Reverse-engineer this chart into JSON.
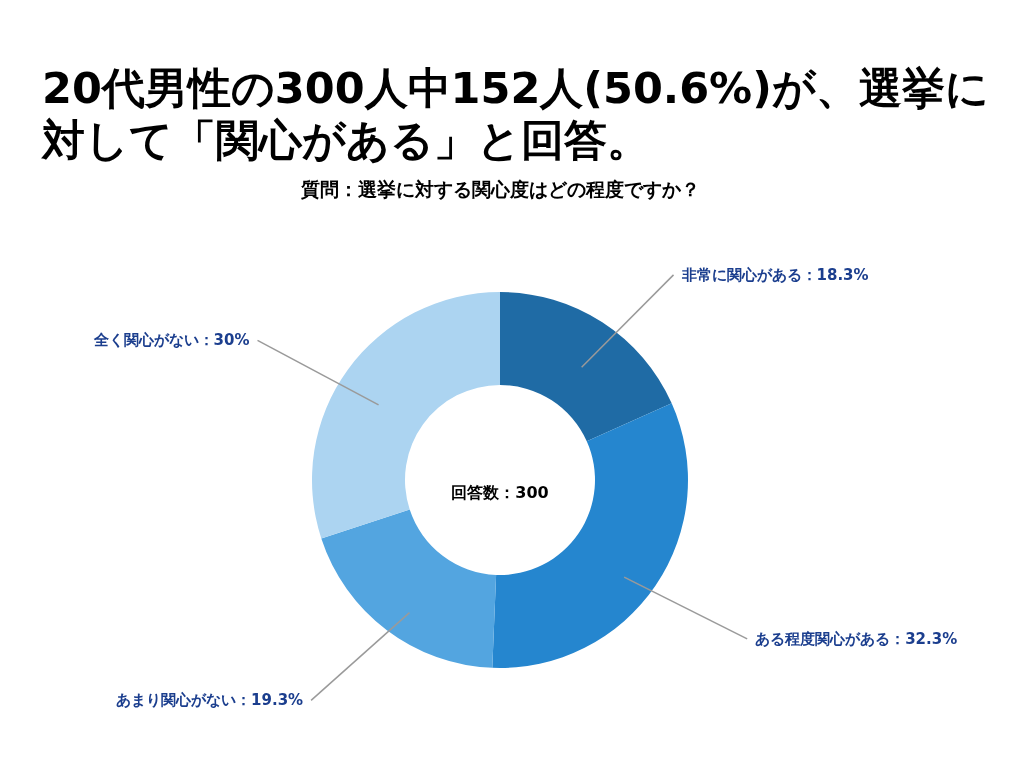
{
  "chart_data": {
    "type": "donut",
    "title": "20代男性の300人中152人(50.6%)が、選挙に対して「関心がある」と回答。",
    "subtitle": "質問：選挙に対する関心度はどの程度ですか？",
    "categories": [
      "非常に関心がある：18.3%",
      "ある程度関心がある：32.3%",
      "あまり関心がない：19.3%",
      "全く関心がない：30%"
    ],
    "values": [
      18.3,
      32.3,
      19.3,
      30
    ],
    "colors": [
      "#1f6ba5",
      "#2586cf",
      "#53a5e0",
      "#acd4f1"
    ],
    "annotations": [
      "回答数：300"
    ]
  }
}
